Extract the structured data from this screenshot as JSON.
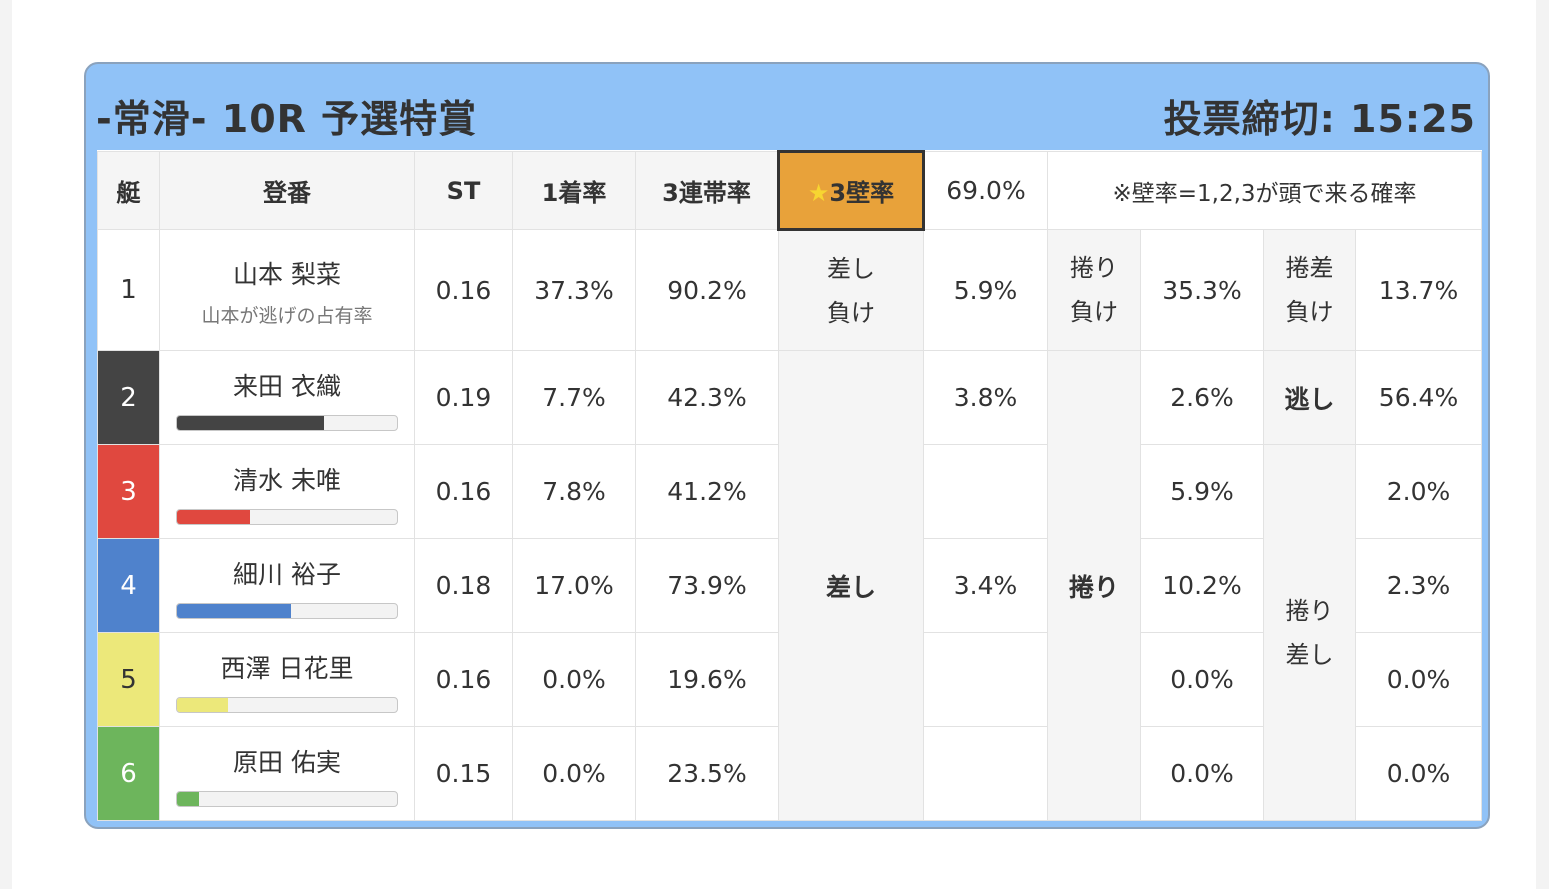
{
  "header": {
    "title": "-常滑- 10R 予選特賞",
    "deadline": "投票締切: 15:25"
  },
  "columns": {
    "boat": "艇",
    "register": "登番",
    "st": "ST",
    "win_rate": "1着率",
    "top3_rate": "3連帯率",
    "wall3_star": "★",
    "wall3_label": "3壁率",
    "wall3_value": "69.0%",
    "note": "※壁率=1,2,3が頭で来る確率"
  },
  "colors": {
    "header_bg": "#90c2f7",
    "star_cell_bg": "#e8a23a",
    "boat_colors": [
      "#ffffff",
      "#444444",
      "#e0483f",
      "#4f82cc",
      "#ece87a",
      "#6db55c"
    ]
  },
  "racers": [
    {
      "boat": "1",
      "name": "山本 梨菜",
      "sub": "山本が逃げの占有率",
      "st": "0.16",
      "win": "37.3%",
      "top3": "90.2%"
    },
    {
      "boat": "2",
      "name": "来田 衣織",
      "st": "0.19",
      "win": "7.7%",
      "top3": "42.3%",
      "bar_fraction": 0.67
    },
    {
      "boat": "3",
      "name": "清水 未唯",
      "st": "0.16",
      "win": "7.8%",
      "top3": "41.2%",
      "bar_fraction": 0.33
    },
    {
      "boat": "4",
      "name": "細川 裕子",
      "st": "0.18",
      "win": "17.0%",
      "top3": "73.9%",
      "bar_fraction": 0.52
    },
    {
      "boat": "5",
      "name": "西澤 日花里",
      "st": "0.16",
      "win": "0.0%",
      "top3": "19.6%",
      "bar_fraction": 0.23
    },
    {
      "boat": "6",
      "name": "原田 佑実",
      "st": "0.15",
      "win": "0.0%",
      "top3": "23.5%",
      "bar_fraction": 0.1
    }
  ],
  "row1": {
    "sashi_make_1": "差し",
    "sashi_make_2": "負け",
    "sashi_make_value": "5.9%",
    "makuri_make_1": "捲り",
    "makuri_make_2": "負け",
    "makuri_make_value": "35.3%",
    "makusashi_make_1": "捲差",
    "makusashi_make_2": "負け",
    "makusashi_make_value": "13.7%"
  },
  "kimarite": {
    "sashi": "差し",
    "makuri": "捲り",
    "nige": "逃し",
    "makuri_sashi_1": "捲り",
    "makuri_sashi_2": "差し"
  },
  "sashi_values": {
    "boat2": "3.8%",
    "boat4": "3.4%"
  },
  "makuri_values": [
    "2.6%",
    "5.9%",
    "10.2%",
    "0.0%",
    "0.0%"
  ],
  "nige_value": "56.4%",
  "makuri_sashi_values": [
    "2.0%",
    "2.3%",
    "0.0%",
    "0.0%"
  ]
}
